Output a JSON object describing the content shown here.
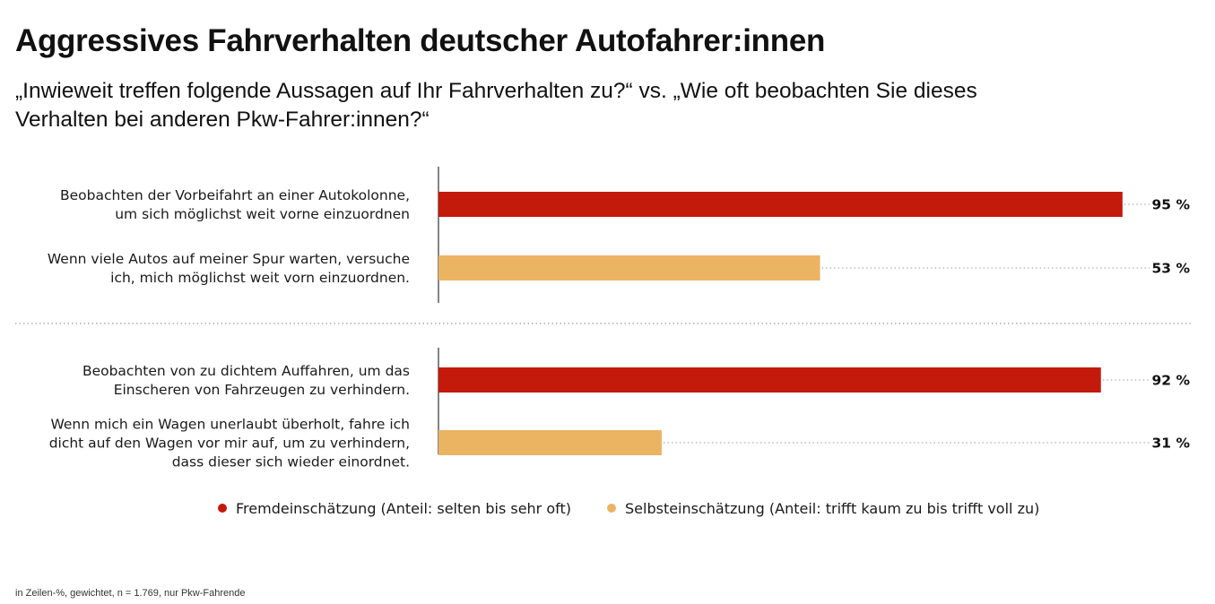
{
  "title": "Aggressives Fahrverhalten deutscher Autofahrer:innen",
  "subtitle": {
    "line1": "„Inwieweit treffen folgende Aussagen auf Ihr Fahrverhalten zu?“ vs. „Wie oft beobachten Sie dieses",
    "line2": "Verhalten bei anderen Pkw-Fahrer:innen?“"
  },
  "footnote": "in Zeilen-%, gewichtet, n = 1.769, nur Pkw-Fahrende",
  "colors": {
    "fremd": "#c41a0b",
    "selbst": "#eab463",
    "axis": "#333333",
    "dotted": "#9a9a9a"
  },
  "chart_data": {
    "type": "bar",
    "orientation": "horizontal",
    "xlim": [
      0,
      100
    ],
    "unit": "%",
    "grid": false,
    "legend_position": "bottom",
    "series": [
      {
        "name": "Fremdeinschätzung (Anteil: selten bis sehr oft)",
        "color": "#c41a0b"
      },
      {
        "name": "Selbsteinschätzung (Anteil: trifft kaum zu bis trifft voll zu)",
        "color": "#eab463"
      }
    ],
    "groups": [
      {
        "bars": [
          {
            "series": 0,
            "label_lines": [
              "Beobachten der Vorbeifahrt an einer Autokolonne,",
              "um sich möglichst weit vorne einzuordnen"
            ],
            "value": 95,
            "value_label": "95 %"
          },
          {
            "series": 1,
            "label_lines": [
              "Wenn viele Autos auf meiner Spur warten, versuche",
              "ich, mich möglichst weit vorn einzuordnen."
            ],
            "value": 53,
            "value_label": "53 %"
          }
        ]
      },
      {
        "bars": [
          {
            "series": 0,
            "label_lines": [
              "Beobachten von zu dichtem Auffahren, um das",
              "Einscheren von Fahrzeugen zu verhindern."
            ],
            "value": 92,
            "value_label": "92 %"
          },
          {
            "series": 1,
            "label_lines": [
              "Wenn mich ein Wagen unerlaubt überholt, fahre ich",
              "dicht auf den Wagen vor mir auf, um zu verhindern,",
              "dass dieser sich wieder einordnet."
            ],
            "value": 31,
            "value_label": "31 %"
          }
        ]
      }
    ]
  }
}
